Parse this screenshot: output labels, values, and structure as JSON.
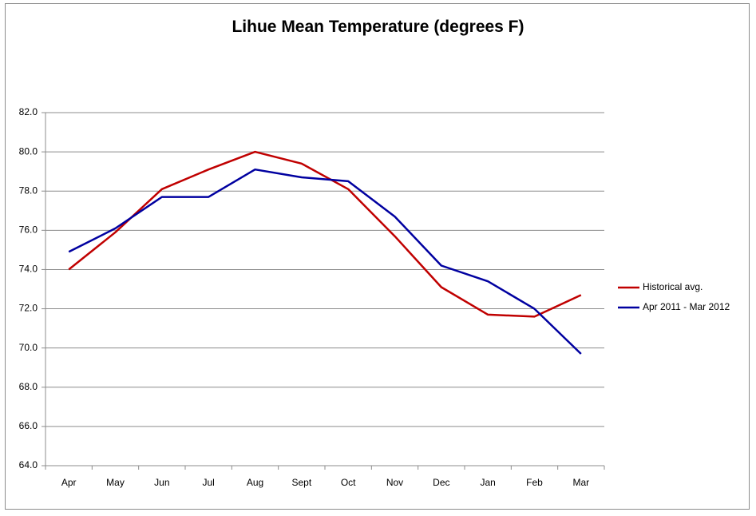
{
  "chart_data": {
    "type": "line",
    "title": "Lihue Mean Temperature (degrees F)",
    "xlabel": "",
    "ylabel": "",
    "categories": [
      "Apr",
      "May",
      "Jun",
      "Jul",
      "Aug",
      "Sept",
      "Oct",
      "Nov",
      "Dec",
      "Jan",
      "Feb",
      "Mar"
    ],
    "ylim": [
      64.0,
      82.0
    ],
    "yticks": [
      "64.0",
      "66.0",
      "68.0",
      "70.0",
      "72.0",
      "74.0",
      "76.0",
      "78.0",
      "80.0",
      "82.0"
    ],
    "grid": true,
    "legend_position": "right",
    "series": [
      {
        "name": "Historical avg.",
        "color": "#c00000",
        "values": [
          74.0,
          75.9,
          78.1,
          79.1,
          80.0,
          79.4,
          78.1,
          75.7,
          73.1,
          71.7,
          71.6,
          72.7
        ]
      },
      {
        "name": "Apr 2011 - Mar 2012",
        "color": "#0000a0",
        "values": [
          74.9,
          76.1,
          77.7,
          77.7,
          79.1,
          78.7,
          78.5,
          76.7,
          74.2,
          73.4,
          72.0,
          69.7
        ]
      }
    ]
  }
}
